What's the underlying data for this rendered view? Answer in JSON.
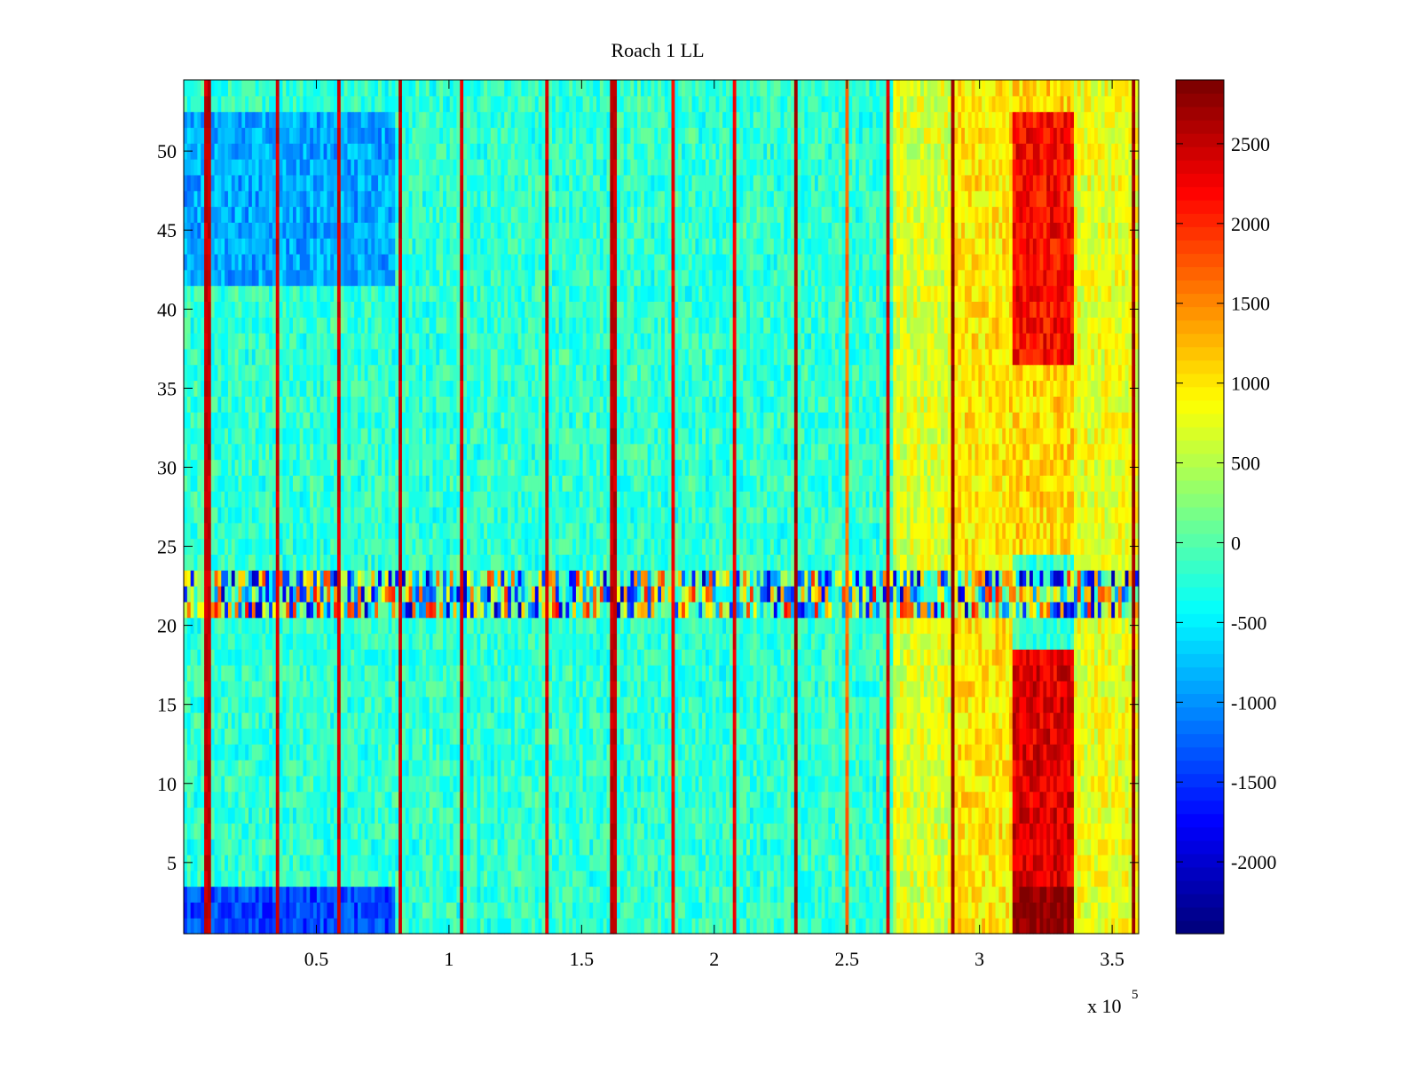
{
  "chart_data": {
    "type": "heatmap",
    "title": "Roach 1 LL",
    "xlabel": "",
    "ylabel": "",
    "xlim": [
      0,
      360000
    ],
    "ylim": [
      0.5,
      54.5
    ],
    "x_ticks": [
      50000,
      100000,
      150000,
      200000,
      250000,
      300000,
      350000
    ],
    "x_tick_labels": [
      "0.5",
      "1",
      "1.5",
      "2",
      "2.5",
      "3",
      "3.5"
    ],
    "x_exponent": "x 10",
    "x_exponent_power": "5",
    "y_ticks": [
      5,
      10,
      15,
      20,
      25,
      30,
      35,
      40,
      45,
      50
    ],
    "y_tick_labels": [
      "5",
      "10",
      "15",
      "20",
      "25",
      "30",
      "35",
      "40",
      "45",
      "50"
    ],
    "rows": 54,
    "colormap": "jet",
    "clim": [
      -2450,
      2900
    ],
    "colorbar": {
      "ticks": [
        -2000,
        -1500,
        -1000,
        -500,
        0,
        500,
        1000,
        1500,
        2000,
        2500
      ],
      "tick_labels": [
        "-2000",
        "-1500",
        "-1000",
        "-500",
        "0",
        "500",
        "1000",
        "1500",
        "2000",
        "2500"
      ],
      "levels": 64
    },
    "background_level": -200,
    "vertical_stripes": [
      {
        "x": 9000,
        "value": 2700
      },
      {
        "x": 35000,
        "value": 2600
      },
      {
        "x": 58000,
        "value": 2600
      },
      {
        "x": 82000,
        "value": 2700
      },
      {
        "x": 105000,
        "value": 2600
      },
      {
        "x": 137000,
        "value": 2600
      },
      {
        "x": 162000,
        "value": 2700
      },
      {
        "x": 185000,
        "value": 2400
      },
      {
        "x": 208000,
        "value": 2500
      },
      {
        "x": 231000,
        "value": 2800
      },
      {
        "x": 250000,
        "value": 1800
      },
      {
        "x": 265000,
        "value": 2600
      },
      {
        "x": 290000,
        "value": 2900
      },
      {
        "x": 358000,
        "value": 2900
      }
    ],
    "high_regions": [
      {
        "x_range": [
          268000,
          290000
        ],
        "rows": [
          1,
          54
        ],
        "value": 700
      },
      {
        "x_range": [
          290000,
          312000
        ],
        "rows": [
          1,
          54
        ],
        "value": 1000
      },
      {
        "x_range": [
          312000,
          336000
        ],
        "rows": [
          25,
          54
        ],
        "value": 1100
      },
      {
        "x_range": [
          312000,
          336000
        ],
        "rows": [
          37,
          52
        ],
        "value": 2200
      },
      {
        "x_range": [
          312000,
          336000
        ],
        "rows": [
          1,
          18
        ],
        "value": 2400
      },
      {
        "x_range": [
          312000,
          336000
        ],
        "rows": [
          1,
          3
        ],
        "value": 2900
      },
      {
        "x_range": [
          336000,
          360000
        ],
        "rows": [
          1,
          54
        ],
        "value": 800
      },
      {
        "x_range": [
          0,
          80000
        ],
        "rows": [
          1,
          3
        ],
        "value": -1400
      },
      {
        "x_range": [
          0,
          80000
        ],
        "rows": [
          42,
          52
        ],
        "value": -900
      }
    ],
    "noisy_band_rows": [
      21,
      23
    ],
    "colors": {
      "axes": "#000000",
      "background": "#ffffff"
    }
  }
}
